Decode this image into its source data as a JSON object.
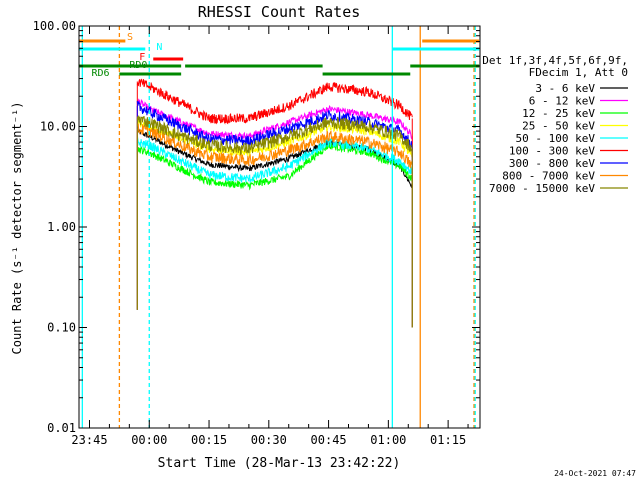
{
  "chart_data": {
    "type": "line",
    "title": "RHESSI Count Rates",
    "xlabel": "Start Time (28-Mar-13 23:42:22)",
    "ylabel": "Count Rate (s⁻¹ detector segment⁻¹)",
    "y_scale": "log",
    "ylim": [
      0.01,
      100
    ],
    "xlim": [
      "23:42:22",
      "01:23:00"
    ],
    "x_ticks": [
      "23:45",
      "00:00",
      "00:15",
      "00:30",
      "00:45",
      "01:00",
      "01:15"
    ],
    "y_ticks": [
      "0.01",
      "0.10",
      "1.00",
      "10.00",
      "100.00"
    ],
    "x_time_points": [
      "23:57",
      "00:00",
      "00:08",
      "00:15",
      "00:25",
      "00:35",
      "00:45",
      "00:55",
      "01:03",
      "01:06"
    ],
    "series": [
      {
        "name": "3 - 6 keV",
        "color": "#000000",
        "values": [
          9,
          8,
          5.5,
          4.2,
          3.8,
          4.8,
          7,
          6,
          4,
          2.5
        ]
      },
      {
        "name": "6 - 12 keV",
        "color": "#ff00ff",
        "values": [
          18,
          15,
          11,
          8.5,
          8,
          11,
          15,
          13,
          11,
          8
        ]
      },
      {
        "name": "12 - 25 keV",
        "color": "#00ff00",
        "values": [
          6,
          5.5,
          3.8,
          2.8,
          2.6,
          3.2,
          6.5,
          5.5,
          4,
          3
        ]
      },
      {
        "name": "25 - 50 keV",
        "color": "#ffff00",
        "values": [
          11,
          10,
          7.5,
          6,
          5.5,
          7,
          10,
          9,
          7,
          5
        ]
      },
      {
        "name": "50 - 100 keV",
        "color": "#00ffff",
        "values": [
          7,
          6.5,
          4.5,
          3.3,
          3,
          4,
          7,
          6,
          4.5,
          3.5
        ]
      },
      {
        "name": "100 - 300 keV",
        "color": "#ff0000",
        "values": [
          28,
          25,
          17,
          12,
          12,
          16,
          25,
          22,
          16,
          12
        ]
      },
      {
        "name": "300 - 800 keV",
        "color": "#0000ff",
        "values": [
          16,
          14,
          10,
          7.5,
          7.2,
          9.5,
          13,
          11,
          9,
          6.5
        ]
      },
      {
        "name": "800 - 7000 keV",
        "color": "#ff8800",
        "values": [
          9.5,
          9,
          6.5,
          5,
          4.6,
          5.8,
          8,
          7,
          5.5,
          4
        ]
      },
      {
        "name": "7000 - 15000 keV",
        "color": "#888800",
        "values": [
          12,
          11,
          8,
          6.5,
          6,
          8,
          11,
          10,
          8,
          6
        ]
      }
    ],
    "legend": {
      "position": "right",
      "header": [
        "Det 1f,3f,4f,5f,6f,9f,",
        "FDecim 1, Att 0"
      ]
    },
    "flag_bars": [
      {
        "label": "S",
        "color": "#ff8800"
      },
      {
        "label": "N",
        "color": "#00ffff"
      },
      {
        "label": "F",
        "color": "#ff0000"
      },
      {
        "label": "RD0",
        "color": "#008800"
      },
      {
        "label": "RD6",
        "color": "#008800"
      }
    ],
    "footer_timestamp": "24-Oct-2021 07:47"
  }
}
